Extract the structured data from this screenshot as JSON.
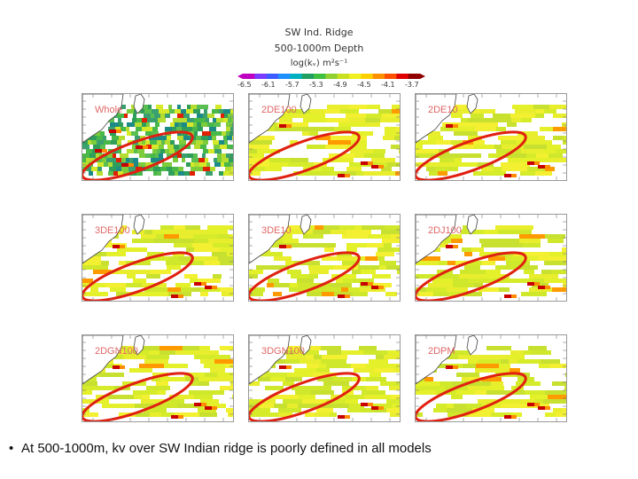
{
  "figure": {
    "title_line1": "SW Ind. Ridge",
    "title_line2": "500-1000m Depth",
    "title_line3": "log(kᵥ) m²s⁻¹"
  },
  "colorbar": {
    "ticks": [
      "-6.5",
      "-6.1",
      "-5.7",
      "-5.3",
      "-4.9",
      "-4.5",
      "-4.1",
      "-3.7"
    ],
    "colors": [
      "#c000c0",
      "#7a3cff",
      "#3c5cff",
      "#1e90ff",
      "#00b0c0",
      "#20a060",
      "#40c040",
      "#90d030",
      "#c8e020",
      "#f0f020",
      "#ffd000",
      "#ff9000",
      "#ff5000",
      "#e00000",
      "#900000"
    ]
  },
  "panels": [
    {
      "label": "Whole",
      "style": "whole"
    },
    {
      "label": "2DE100",
      "style": "model"
    },
    {
      "label": "2DE10",
      "style": "model"
    },
    {
      "label": "3DE100",
      "style": "model"
    },
    {
      "label": "3DE10",
      "style": "model"
    },
    {
      "label": "2DJ100",
      "style": "model"
    },
    {
      "label": "2DGN100",
      "style": "model"
    },
    {
      "label": "3DGN100",
      "style": "model"
    },
    {
      "label": "2DPM",
      "style": "model"
    }
  ],
  "bullet": {
    "symbol": "•",
    "text": "At 500-1000m, kv over SW Indian ridge is poorly defined in all models"
  }
}
